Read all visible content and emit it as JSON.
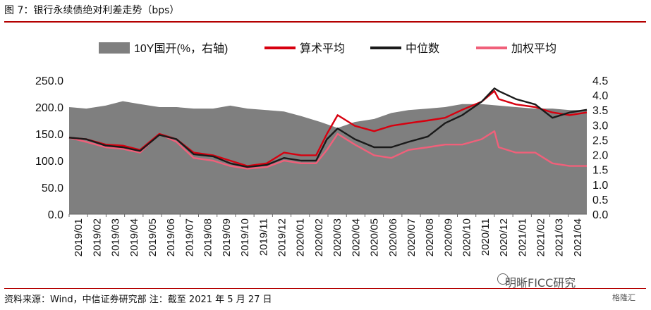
{
  "title": "图 7：银行永续债绝对利差走势（bps）",
  "source": "资料来源：Wind，中信证券研究部  注：截至 2021 年 5 月 27 日",
  "watermark": "明晰FICC研究",
  "watermark_small": "格隆汇",
  "colors": {
    "area": "#7f7f7f",
    "suanshu": "#d7000f",
    "zhongwei": "#1a1a1a",
    "jiaquan": "#f0607a",
    "rule": "#b40000"
  },
  "chart_data": {
    "type": "line",
    "legend": [
      "10Y国开(%，右轴)",
      "算术平均",
      "中位数",
      "加权平均"
    ],
    "legend_position": "top",
    "x_ticks": [
      "2019/01",
      "2019/02",
      "2019/03",
      "2019/04",
      "2019/05",
      "2019/06",
      "2019/07",
      "2019/08",
      "2019/09",
      "2019/10",
      "2019/11",
      "2019/12",
      "2020/01",
      "2020/02",
      "2020/03",
      "2020/04",
      "2020/05",
      "2020/06",
      "2020/07",
      "2020/08",
      "2020/09",
      "2020/10",
      "2020/11",
      "2020/12",
      "2021/01",
      "2021/02",
      "2021/03",
      "2021/04"
    ],
    "y_left": {
      "ticks": [
        "0.0",
        "50.0",
        "100.0",
        "150.0",
        "200.0",
        "250.0"
      ],
      "range": [
        0,
        250
      ]
    },
    "y_right": {
      "ticks": [
        "0.0",
        "0.5",
        "1.0",
        "1.5",
        "2.0",
        "2.5",
        "3.0",
        "3.5",
        "4.0",
        "4.5"
      ],
      "range": [
        0,
        4.5
      ]
    },
    "x_range": [
      2019.0,
      2021.41
    ],
    "series": [
      {
        "name": "10Y国开(%，右轴)",
        "type": "area",
        "axis": "right",
        "x": [
          2019.0,
          2019.08,
          2019.17,
          2019.25,
          2019.33,
          2019.42,
          2019.5,
          2019.58,
          2019.67,
          2019.75,
          2019.83,
          2019.92,
          2020.0,
          2020.08,
          2020.17,
          2020.25,
          2020.33,
          2020.42,
          2020.5,
          2020.58,
          2020.67,
          2020.75,
          2020.83,
          2020.92,
          2021.0,
          2021.08,
          2021.17,
          2021.25,
          2021.33,
          2021.41
        ],
        "values": [
          3.6,
          3.55,
          3.65,
          3.8,
          3.7,
          3.6,
          3.6,
          3.55,
          3.55,
          3.65,
          3.55,
          3.5,
          3.45,
          3.3,
          3.1,
          2.9,
          3.1,
          3.2,
          3.4,
          3.5,
          3.55,
          3.6,
          3.7,
          3.7,
          3.65,
          3.6,
          3.55,
          3.55,
          3.5,
          3.5
        ]
      },
      {
        "name": "算术平均",
        "type": "line",
        "axis": "left",
        "x": [
          2019.0,
          2019.08,
          2019.17,
          2019.25,
          2019.33,
          2019.42,
          2019.5,
          2019.58,
          2019.67,
          2019.75,
          2019.83,
          2019.92,
          2020.0,
          2020.08,
          2020.15,
          2020.2,
          2020.25,
          2020.33,
          2020.42,
          2020.5,
          2020.58,
          2020.67,
          2020.75,
          2020.83,
          2020.92,
          2020.98,
          2021.0,
          2021.08,
          2021.17,
          2021.25,
          2021.33,
          2021.41
        ],
        "values": [
          143,
          140,
          130,
          128,
          120,
          150,
          140,
          115,
          110,
          100,
          90,
          95,
          115,
          110,
          110,
          150,
          185,
          165,
          155,
          165,
          170,
          175,
          180,
          195,
          210,
          230,
          215,
          205,
          200,
          190,
          185,
          190
        ]
      },
      {
        "name": "中位数",
        "type": "line",
        "axis": "left",
        "x": [
          2019.0,
          2019.08,
          2019.17,
          2019.25,
          2019.33,
          2019.42,
          2019.5,
          2019.58,
          2019.67,
          2019.75,
          2019.83,
          2019.92,
          2020.0,
          2020.08,
          2020.15,
          2020.2,
          2020.25,
          2020.33,
          2020.42,
          2020.5,
          2020.58,
          2020.67,
          2020.75,
          2020.83,
          2020.92,
          2020.98,
          2021.0,
          2021.08,
          2021.17,
          2021.25,
          2021.33,
          2021.41
        ],
        "values": [
          143,
          140,
          128,
          125,
          118,
          148,
          140,
          112,
          108,
          95,
          88,
          92,
          105,
          100,
          100,
          140,
          160,
          140,
          125,
          125,
          135,
          145,
          170,
          185,
          210,
          235,
          230,
          215,
          205,
          180,
          190,
          195
        ]
      },
      {
        "name": "加权平均",
        "type": "line",
        "axis": "left",
        "x": [
          2019.0,
          2019.08,
          2019.17,
          2019.25,
          2019.33,
          2019.42,
          2019.5,
          2019.58,
          2019.67,
          2019.75,
          2019.83,
          2019.92,
          2020.0,
          2020.08,
          2020.15,
          2020.2,
          2020.25,
          2020.33,
          2020.42,
          2020.5,
          2020.58,
          2020.67,
          2020.75,
          2020.83,
          2020.92,
          2020.98,
          2021.0,
          2021.08,
          2021.17,
          2021.25,
          2021.33,
          2021.41
        ],
        "values": [
          143,
          135,
          125,
          122,
          115,
          150,
          135,
          105,
          100,
          90,
          85,
          88,
          100,
          95,
          95,
          120,
          150,
          130,
          110,
          105,
          120,
          125,
          130,
          130,
          140,
          155,
          125,
          115,
          115,
          95,
          90,
          90
        ]
      }
    ]
  }
}
